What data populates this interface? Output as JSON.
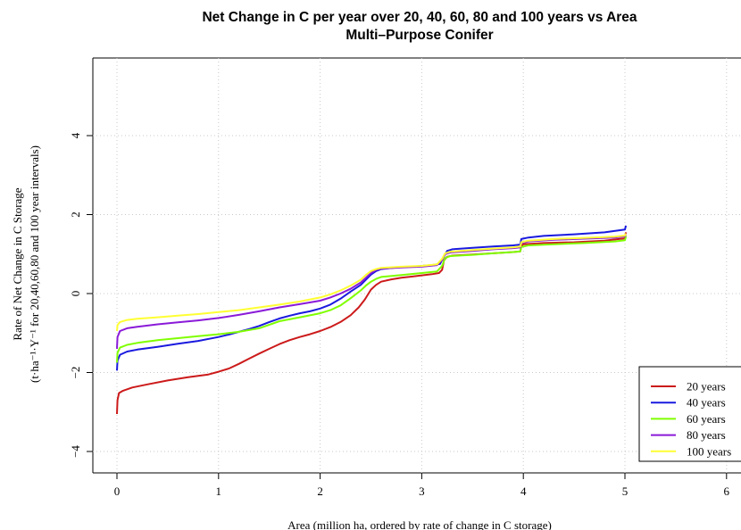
{
  "chart_data": {
    "type": "line",
    "title": "Net Change in C per year over 20, 40, 60, 80 and 100 years vs Area",
    "subtitle": "Multi–Purpose Conifer",
    "xlabel": "Area (million ha, ordered by rate of change in C storage)",
    "ylabel_line1": "Rate of Net Change in C Storage",
    "ylabel_line2": "(t·ha⁻¹·Y⁻¹ for 20,40,60,80 and 100 year intervals)",
    "xlim": [
      -0.1,
      6.1
    ],
    "ylim": [
      -4.4,
      5.9
    ],
    "x_ticks": [
      0,
      1,
      2,
      3,
      4,
      5,
      6
    ],
    "x_tick_labels": [
      "0",
      "1",
      "2",
      "3",
      "4",
      "5",
      "6"
    ],
    "y_ticks": [
      -4,
      -2,
      0,
      2,
      4
    ],
    "y_tick_labels": [
      "−4",
      "−2",
      "0",
      "2",
      "4"
    ],
    "grid": true,
    "legend_position": "bottom-right",
    "series": [
      {
        "name": "20 years",
        "color": "#cc1a1a",
        "points": [
          [
            0.0,
            -3.05
          ],
          [
            0.005,
            -2.7
          ],
          [
            0.02,
            -2.52
          ],
          [
            0.06,
            -2.46
          ],
          [
            0.15,
            -2.38
          ],
          [
            0.3,
            -2.3
          ],
          [
            0.5,
            -2.2
          ],
          [
            0.7,
            -2.12
          ],
          [
            0.9,
            -2.05
          ],
          [
            1.0,
            -1.98
          ],
          [
            1.1,
            -1.9
          ],
          [
            1.2,
            -1.78
          ],
          [
            1.3,
            -1.65
          ],
          [
            1.4,
            -1.52
          ],
          [
            1.5,
            -1.4
          ],
          [
            1.6,
            -1.28
          ],
          [
            1.7,
            -1.18
          ],
          [
            1.8,
            -1.1
          ],
          [
            1.9,
            -1.03
          ],
          [
            2.0,
            -0.95
          ],
          [
            2.1,
            -0.85
          ],
          [
            2.2,
            -0.72
          ],
          [
            2.3,
            -0.55
          ],
          [
            2.38,
            -0.35
          ],
          [
            2.44,
            -0.15
          ],
          [
            2.5,
            0.1
          ],
          [
            2.55,
            0.22
          ],
          [
            2.6,
            0.3
          ],
          [
            2.7,
            0.36
          ],
          [
            2.8,
            0.4
          ],
          [
            2.9,
            0.43
          ],
          [
            3.0,
            0.46
          ],
          [
            3.1,
            0.49
          ],
          [
            3.17,
            0.52
          ],
          [
            3.2,
            0.6
          ],
          [
            3.22,
            0.85
          ],
          [
            3.25,
            0.93
          ],
          [
            3.3,
            0.96
          ],
          [
            3.5,
            0.99
          ],
          [
            3.7,
            1.02
          ],
          [
            3.9,
            1.05
          ],
          [
            3.97,
            1.07
          ],
          [
            3.98,
            1.2
          ],
          [
            4.0,
            1.25
          ],
          [
            4.2,
            1.28
          ],
          [
            4.5,
            1.3
          ],
          [
            4.8,
            1.34
          ],
          [
            5.0,
            1.4
          ],
          [
            5.01,
            1.55
          ]
        ]
      },
      {
        "name": "40 years",
        "color": "#1a1adf",
        "points": [
          [
            0.0,
            -1.95
          ],
          [
            0.005,
            -1.7
          ],
          [
            0.03,
            -1.55
          ],
          [
            0.1,
            -1.47
          ],
          [
            0.2,
            -1.42
          ],
          [
            0.4,
            -1.35
          ],
          [
            0.6,
            -1.27
          ],
          [
            0.8,
            -1.2
          ],
          [
            1.0,
            -1.1
          ],
          [
            1.1,
            -1.04
          ],
          [
            1.2,
            -0.97
          ],
          [
            1.3,
            -0.9
          ],
          [
            1.4,
            -0.82
          ],
          [
            1.5,
            -0.72
          ],
          [
            1.6,
            -0.63
          ],
          [
            1.7,
            -0.56
          ],
          [
            1.8,
            -0.5
          ],
          [
            1.9,
            -0.45
          ],
          [
            2.0,
            -0.38
          ],
          [
            2.1,
            -0.28
          ],
          [
            2.2,
            -0.13
          ],
          [
            2.3,
            0.05
          ],
          [
            2.4,
            0.22
          ],
          [
            2.45,
            0.35
          ],
          [
            2.5,
            0.48
          ],
          [
            2.55,
            0.57
          ],
          [
            2.6,
            0.62
          ],
          [
            2.7,
            0.65
          ],
          [
            2.8,
            0.67
          ],
          [
            2.9,
            0.68
          ],
          [
            3.0,
            0.7
          ],
          [
            3.1,
            0.72
          ],
          [
            3.18,
            0.75
          ],
          [
            3.21,
            0.9
          ],
          [
            3.25,
            1.08
          ],
          [
            3.3,
            1.12
          ],
          [
            3.5,
            1.16
          ],
          [
            3.7,
            1.19
          ],
          [
            3.9,
            1.22
          ],
          [
            3.97,
            1.24
          ],
          [
            3.98,
            1.38
          ],
          [
            4.05,
            1.42
          ],
          [
            4.2,
            1.46
          ],
          [
            4.5,
            1.5
          ],
          [
            4.8,
            1.55
          ],
          [
            5.0,
            1.62
          ],
          [
            5.01,
            1.72
          ]
        ]
      },
      {
        "name": "60 years",
        "color": "#7fff00",
        "points": [
          [
            0.0,
            -1.75
          ],
          [
            0.005,
            -1.5
          ],
          [
            0.03,
            -1.37
          ],
          [
            0.1,
            -1.3
          ],
          [
            0.2,
            -1.25
          ],
          [
            0.4,
            -1.18
          ],
          [
            0.6,
            -1.13
          ],
          [
            0.8,
            -1.08
          ],
          [
            1.0,
            -1.03
          ],
          [
            1.2,
            -0.97
          ],
          [
            1.4,
            -0.88
          ],
          [
            1.6,
            -0.7
          ],
          [
            1.8,
            -0.6
          ],
          [
            2.0,
            -0.5
          ],
          [
            2.1,
            -0.42
          ],
          [
            2.2,
            -0.3
          ],
          [
            2.3,
            -0.12
          ],
          [
            2.4,
            0.08
          ],
          [
            2.45,
            0.2
          ],
          [
            2.5,
            0.3
          ],
          [
            2.55,
            0.37
          ],
          [
            2.6,
            0.42
          ],
          [
            2.8,
            0.47
          ],
          [
            3.0,
            0.52
          ],
          [
            3.15,
            0.56
          ],
          [
            3.2,
            0.7
          ],
          [
            3.23,
            0.9
          ],
          [
            3.28,
            0.95
          ],
          [
            3.5,
            0.98
          ],
          [
            3.7,
            1.02
          ],
          [
            3.9,
            1.05
          ],
          [
            3.97,
            1.07
          ],
          [
            3.98,
            1.18
          ],
          [
            4.05,
            1.22
          ],
          [
            4.3,
            1.25
          ],
          [
            4.6,
            1.28
          ],
          [
            4.9,
            1.32
          ],
          [
            5.0,
            1.35
          ],
          [
            5.01,
            1.45
          ]
        ]
      },
      {
        "name": "80 years",
        "color": "#8a1ad8",
        "points": [
          [
            0.0,
            -1.4
          ],
          [
            0.005,
            -1.1
          ],
          [
            0.03,
            -0.95
          ],
          [
            0.1,
            -0.88
          ],
          [
            0.2,
            -0.84
          ],
          [
            0.4,
            -0.78
          ],
          [
            0.6,
            -0.73
          ],
          [
            0.8,
            -0.68
          ],
          [
            1.0,
            -0.62
          ],
          [
            1.2,
            -0.54
          ],
          [
            1.4,
            -0.45
          ],
          [
            1.6,
            -0.35
          ],
          [
            1.8,
            -0.27
          ],
          [
            2.0,
            -0.18
          ],
          [
            2.1,
            -0.1
          ],
          [
            2.2,
            0.0
          ],
          [
            2.3,
            0.12
          ],
          [
            2.4,
            0.28
          ],
          [
            2.45,
            0.4
          ],
          [
            2.5,
            0.52
          ],
          [
            2.55,
            0.6
          ],
          [
            2.6,
            0.63
          ],
          [
            2.8,
            0.66
          ],
          [
            3.0,
            0.68
          ],
          [
            3.15,
            0.72
          ],
          [
            3.2,
            0.85
          ],
          [
            3.23,
            1.0
          ],
          [
            3.28,
            1.04
          ],
          [
            3.5,
            1.08
          ],
          [
            3.7,
            1.12
          ],
          [
            3.9,
            1.15
          ],
          [
            3.97,
            1.17
          ],
          [
            3.98,
            1.28
          ],
          [
            4.05,
            1.32
          ],
          [
            4.3,
            1.36
          ],
          [
            4.6,
            1.39
          ],
          [
            4.9,
            1.42
          ],
          [
            5.0,
            1.45
          ],
          [
            5.01,
            1.52
          ]
        ]
      },
      {
        "name": "100 years",
        "color": "#ffff33",
        "points": [
          [
            0.0,
            -0.95
          ],
          [
            0.005,
            -0.8
          ],
          [
            0.03,
            -0.72
          ],
          [
            0.1,
            -0.67
          ],
          [
            0.2,
            -0.64
          ],
          [
            0.4,
            -0.6
          ],
          [
            0.6,
            -0.56
          ],
          [
            0.8,
            -0.52
          ],
          [
            1.0,
            -0.47
          ],
          [
            1.2,
            -0.42
          ],
          [
            1.4,
            -0.35
          ],
          [
            1.6,
            -0.28
          ],
          [
            1.8,
            -0.2
          ],
          [
            2.0,
            -0.1
          ],
          [
            2.1,
            -0.02
          ],
          [
            2.2,
            0.08
          ],
          [
            2.3,
            0.2
          ],
          [
            2.4,
            0.35
          ],
          [
            2.45,
            0.47
          ],
          [
            2.5,
            0.57
          ],
          [
            2.55,
            0.62
          ],
          [
            2.6,
            0.65
          ],
          [
            2.8,
            0.68
          ],
          [
            3.0,
            0.7
          ],
          [
            3.15,
            0.74
          ],
          [
            3.2,
            0.88
          ],
          [
            3.23,
            1.02
          ],
          [
            3.28,
            1.06
          ],
          [
            3.5,
            1.1
          ],
          [
            3.7,
            1.14
          ],
          [
            3.9,
            1.17
          ],
          [
            3.97,
            1.19
          ],
          [
            3.98,
            1.3
          ],
          [
            4.05,
            1.34
          ],
          [
            4.3,
            1.38
          ],
          [
            4.6,
            1.41
          ],
          [
            4.9,
            1.44
          ],
          [
            5.0,
            1.47
          ],
          [
            5.01,
            1.52
          ]
        ]
      }
    ]
  }
}
